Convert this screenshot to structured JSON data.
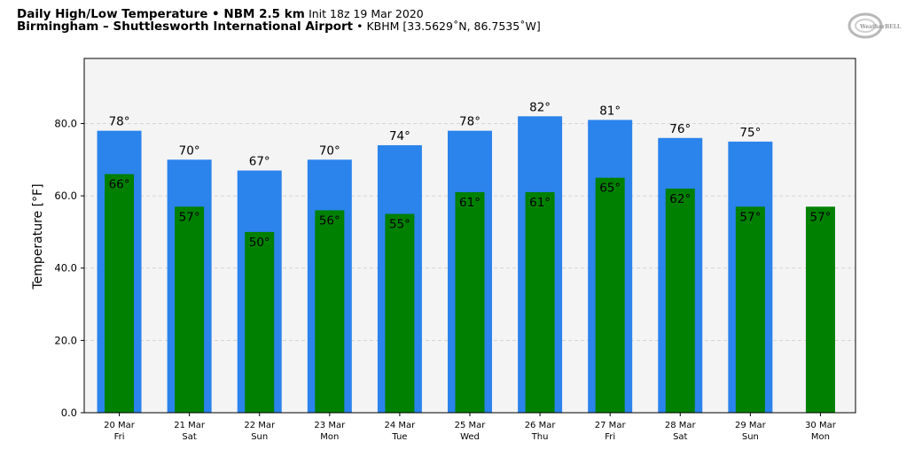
{
  "header": {
    "title": "Daily High/Low Temperature",
    "bullet1": " • ",
    "model": "NBM 2.5 km",
    "init": "Init 18z 19 Mar 2020",
    "location": "Birmingham – Shuttlesworth International Airport",
    "bullet2": " • ",
    "station": "KBHM [33.5629˚N, 86.7535˚W]",
    "logo_text": "WeatherBELL"
  },
  "chart_data": {
    "type": "bar",
    "ylabel": "Temperature [°F]",
    "xlabel": "",
    "ylim": [
      0,
      98
    ],
    "yticks": [
      0,
      20,
      40,
      60,
      80
    ],
    "ytick_labels": [
      "0.0",
      "20.0",
      "40.0",
      "60.0",
      "80.0"
    ],
    "grid": true,
    "categories": [
      {
        "date": "20 Mar",
        "day": "Fri"
      },
      {
        "date": "21 Mar",
        "day": "Sat"
      },
      {
        "date": "22 Mar",
        "day": "Sun"
      },
      {
        "date": "23 Mar",
        "day": "Mon"
      },
      {
        "date": "24 Mar",
        "day": "Tue"
      },
      {
        "date": "25 Mar",
        "day": "Wed"
      },
      {
        "date": "26 Mar",
        "day": "Thu"
      },
      {
        "date": "27 Mar",
        "day": "Fri"
      },
      {
        "date": "28 Mar",
        "day": "Sat"
      },
      {
        "date": "29 Mar",
        "day": "Sun"
      },
      {
        "date": "30 Mar",
        "day": "Mon"
      }
    ],
    "series": [
      {
        "key": "high",
        "color": "#2b83ec",
        "values": [
          78,
          70,
          67,
          70,
          74,
          78,
          82,
          81,
          76,
          75,
          null
        ]
      },
      {
        "key": "low",
        "color": "#008000",
        "values": [
          66,
          57,
          50,
          56,
          55,
          61,
          61,
          65,
          62,
          57,
          57
        ]
      }
    ],
    "label_suffix": "°"
  }
}
